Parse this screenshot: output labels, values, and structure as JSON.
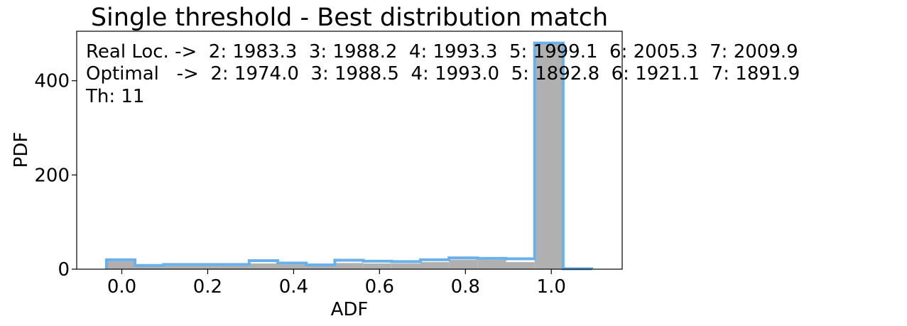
{
  "chart_data": {
    "type": "histogram",
    "title": "Single threshold - Best distribution match",
    "xlabel": "ADF",
    "ylabel": "PDF",
    "xlim": [
      -0.105,
      1.165
    ],
    "ylim": [
      0,
      505
    ],
    "xticks": [
      0.0,
      0.2,
      0.4,
      0.6,
      0.8,
      1.0
    ],
    "xtick_labels": [
      "0.0",
      "0.2",
      "0.4",
      "0.6",
      "0.8",
      "1.0"
    ],
    "yticks": [
      0,
      200,
      400
    ],
    "ytick_labels": [
      "0",
      "200",
      "400"
    ],
    "bin_edges": [
      -0.0357,
      0.0308,
      0.0972,
      0.1637,
      0.2301,
      0.2966,
      0.363,
      0.4295,
      0.4959,
      0.5624,
      0.6288,
      0.6953,
      0.7617,
      0.8282,
      0.8946,
      0.9611,
      1.0275,
      1.094
    ],
    "gray_values": [
      17,
      8,
      8,
      8,
      8,
      12,
      10,
      8,
      13,
      12,
      12,
      15,
      20,
      20,
      15,
      480,
      0
    ],
    "blue_values": [
      20,
      8,
      10,
      10,
      10,
      18,
      13,
      9,
      19,
      17,
      16,
      20,
      24,
      23,
      22,
      480,
      1
    ],
    "colors": {
      "fill": "#b0b0b0",
      "step": "#6ab0ea"
    },
    "grid": false,
    "annotation_lines": [
      "Real Loc. ->  2: 1983.3  3: 1988.2  4: 1993.3  5: 1999.1  6: 2005.3  7: 2009.9",
      "Optimal   ->  2: 1974.0  3: 1988.5  4: 1993.0  5: 1892.8  6: 1921.1  7: 1891.9",
      "Th: 11"
    ]
  }
}
